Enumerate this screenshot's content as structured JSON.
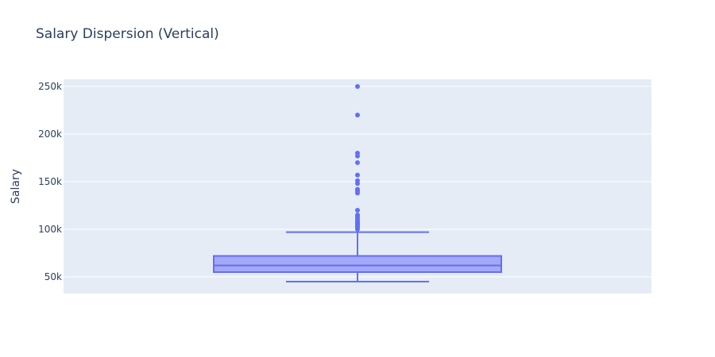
{
  "chart_data": {
    "type": "box",
    "title": "Salary Dispersion (Vertical)",
    "xlabel": "",
    "ylabel": "Salary",
    "ylim": [
      32500,
      257500
    ],
    "yticks": [
      {
        "value": 50000,
        "label": "50k"
      },
      {
        "value": 100000,
        "label": "100k"
      },
      {
        "value": 150000,
        "label": "150k"
      },
      {
        "value": 200000,
        "label": "200k"
      },
      {
        "value": 250000,
        "label": "250k"
      }
    ],
    "grid": true,
    "box": {
      "min": 45000,
      "q1": 55000,
      "median": 62000,
      "q3": 72000,
      "upper_fence": 97000
    },
    "outliers": [
      100000,
      102000,
      103000,
      104000,
      105000,
      106000,
      107000,
      108000,
      110000,
      112000,
      114000,
      115000,
      120000,
      138000,
      140000,
      142000,
      148000,
      151000,
      157000,
      170000,
      177000,
      180000,
      220000,
      250000
    ],
    "colors": {
      "box_line": "#636efa",
      "box_fill": "#a3a9f7",
      "plot_bg": "#e5ecf6",
      "grid": "#ffffff",
      "text": "#2a3f5f"
    }
  }
}
